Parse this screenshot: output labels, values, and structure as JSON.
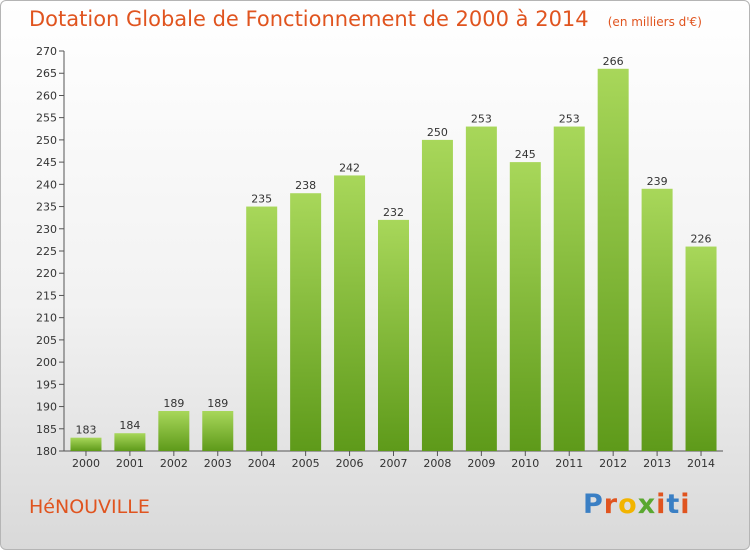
{
  "header": {
    "title": "Dotation Globale de Fonctionnement de 2000 à 2014",
    "subtitle": "(en milliers d'€)"
  },
  "footer": {
    "city": "HéNOUVILLE",
    "brand": "Proxiti",
    "brand_colors": [
      "#3a7fc4",
      "#e0541f",
      "#f2b400",
      "#5aa830",
      "#e0541f",
      "#3a7fc4",
      "#e0541f"
    ]
  },
  "colors": {
    "bar_top": "#a8d75a",
    "bar_bottom": "#5e9a1a",
    "text": "#333333",
    "accent": "#e0541f"
  },
  "chart_data": {
    "type": "bar",
    "title": "Dotation Globale de Fonctionnement de 2000 à 2014",
    "subtitle": "(en milliers d'€)",
    "xlabel": "",
    "ylabel": "",
    "categories": [
      "2000",
      "2001",
      "2002",
      "2003",
      "2004",
      "2005",
      "2006",
      "2007",
      "2008",
      "2009",
      "2010",
      "2011",
      "2012",
      "2013",
      "2014"
    ],
    "values": [
      183,
      184,
      189,
      189,
      235,
      238,
      242,
      232,
      250,
      253,
      245,
      253,
      266,
      239,
      226
    ],
    "data_labels": [
      "183",
      "184",
      "189",
      "189",
      "235",
      "238",
      "242",
      "232",
      "250",
      "253",
      "245",
      "253",
      "266",
      "239",
      "226"
    ],
    "ylim": [
      180,
      270
    ],
    "yticks": [
      180,
      185,
      190,
      195,
      200,
      205,
      210,
      215,
      220,
      225,
      230,
      235,
      240,
      245,
      250,
      255,
      260,
      265,
      270
    ],
    "ytick_labels": [
      "180",
      "185",
      "190",
      "195",
      "200",
      "205",
      "210",
      "215",
      "220",
      "225",
      "230",
      "235",
      "240",
      "245",
      "250",
      "255",
      "260",
      "265",
      "270"
    ],
    "grid": false,
    "legend": "none"
  }
}
